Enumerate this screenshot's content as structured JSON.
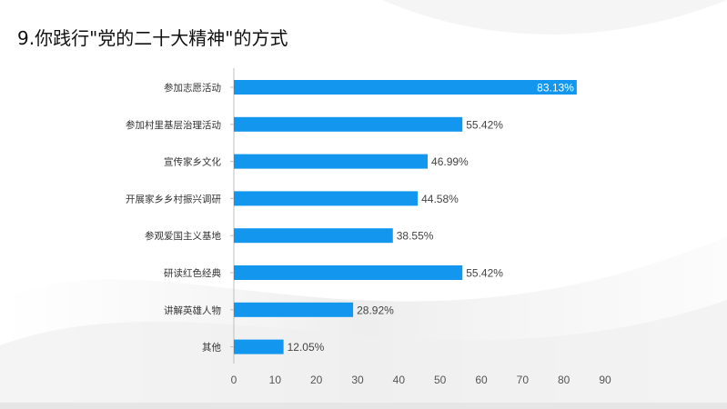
{
  "page": {
    "title": "9.你践行\"党的二十大精神\"的方式"
  },
  "colors": {
    "bar": "#1296ee",
    "axis": "#bfbfbf",
    "text": "#333333"
  },
  "chart_data": {
    "type": "bar",
    "orientation": "horizontal",
    "title": "",
    "categories": [
      "参加志愿活动",
      "参加村里基层治理活动",
      "宣传家乡文化",
      "开展家乡乡村振兴调研",
      "参观爱国主义基地",
      "研读红色经典",
      "讲解英雄人物",
      "其他"
    ],
    "values": [
      83.13,
      55.42,
      46.99,
      44.58,
      38.55,
      55.42,
      28.92,
      12.05
    ],
    "value_labels": [
      "83.13%",
      "55.42%",
      "46.99%",
      "44.58%",
      "38.55%",
      "55.42%",
      "28.92%",
      "12.05%"
    ],
    "xlim": [
      0,
      90
    ],
    "x_ticks": [
      "0",
      "10",
      "20",
      "30",
      "40",
      "50",
      "60",
      "70",
      "80",
      "90"
    ],
    "xlabel": "",
    "ylabel": "",
    "grid": false,
    "legend": "none"
  }
}
